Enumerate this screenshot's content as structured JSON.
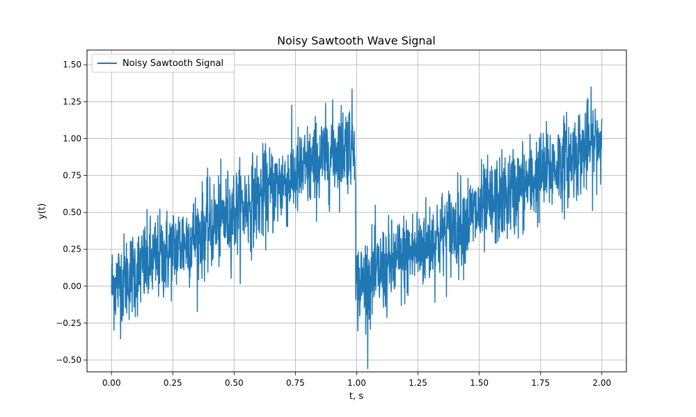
{
  "chart_data": {
    "type": "line",
    "title": "Noisy Sawtooth Wave Signal",
    "xlabel": "t, s",
    "ylabel": "y(t)",
    "xlim": [
      -0.1,
      2.1
    ],
    "ylim": [
      -0.58,
      1.6
    ],
    "xticks": [
      "0.00",
      "0.25",
      "0.50",
      "0.75",
      "1.00",
      "1.25",
      "1.50",
      "1.75",
      "2.00"
    ],
    "yticks": [
      "−0.50",
      "−0.25",
      "0.00",
      "0.25",
      "0.50",
      "0.75",
      "1.00",
      "1.25",
      "1.50"
    ],
    "grid": true,
    "legend_position": "top-left",
    "series": [
      {
        "name": "Noisy Sawtooth Signal",
        "color": "#1f77b4",
        "x": [
          0.0,
          0.05,
          0.1,
          0.15,
          0.2,
          0.25,
          0.3,
          0.35,
          0.4,
          0.45,
          0.5,
          0.55,
          0.6,
          0.65,
          0.7,
          0.75,
          0.8,
          0.85,
          0.9,
          0.95,
          0.995,
          1.0,
          1.05,
          1.1,
          1.15,
          1.2,
          1.25,
          1.3,
          1.35,
          1.4,
          1.45,
          1.5,
          1.55,
          1.6,
          1.65,
          1.7,
          1.75,
          1.8,
          1.85,
          1.9,
          1.95,
          2.0
        ],
        "y": [
          0.0,
          0.05,
          0.1,
          0.15,
          0.2,
          0.25,
          0.3,
          0.35,
          0.4,
          0.45,
          0.5,
          0.55,
          0.6,
          0.65,
          0.7,
          0.75,
          0.8,
          0.85,
          0.9,
          0.95,
          0.99,
          0.0,
          0.05,
          0.1,
          0.15,
          0.2,
          0.25,
          0.3,
          0.35,
          0.4,
          0.45,
          0.5,
          0.55,
          0.6,
          0.65,
          0.7,
          0.75,
          0.8,
          0.85,
          0.9,
          0.95,
          1.0
        ],
        "noise_std": 0.15
      }
    ]
  }
}
